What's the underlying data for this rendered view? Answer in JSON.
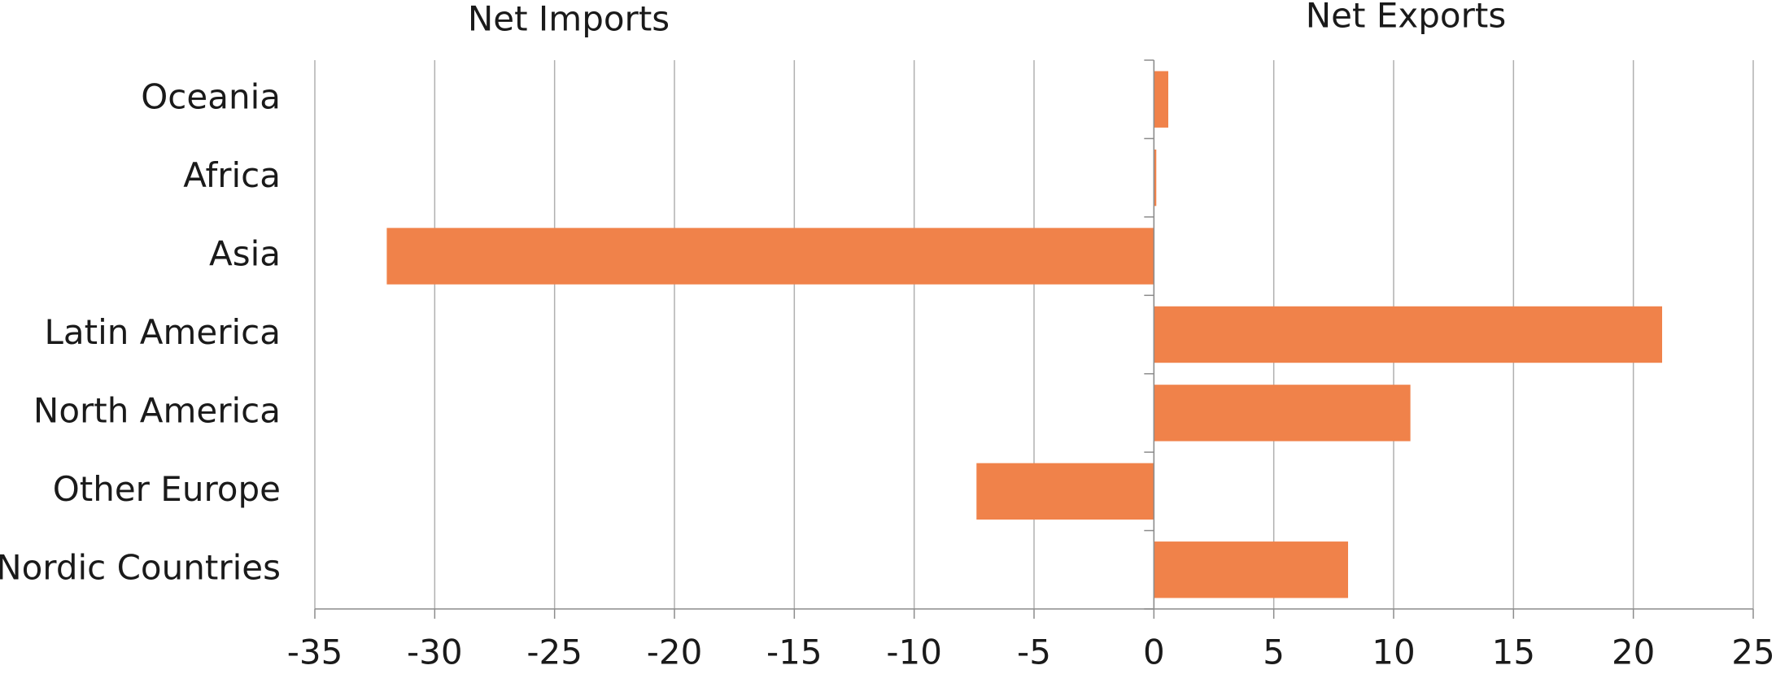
{
  "chart_data": {
    "type": "barh",
    "annotations": [
      "Net Imports",
      "Net Exports"
    ],
    "categories": [
      "Oceania",
      "Africa",
      "Asia",
      "Latin America",
      "North America",
      "Other Europe",
      "Nordic Countries"
    ],
    "values": [
      0.6,
      0.1,
      -32,
      21.2,
      10.7,
      -7.4,
      8.1
    ],
    "color": "#f0824a",
    "xlim": [
      -35,
      25
    ],
    "xticks": [
      -35,
      -30,
      -25,
      -20,
      -15,
      -10,
      -5,
      0,
      5,
      10,
      15,
      20,
      25
    ],
    "grid": true
  }
}
